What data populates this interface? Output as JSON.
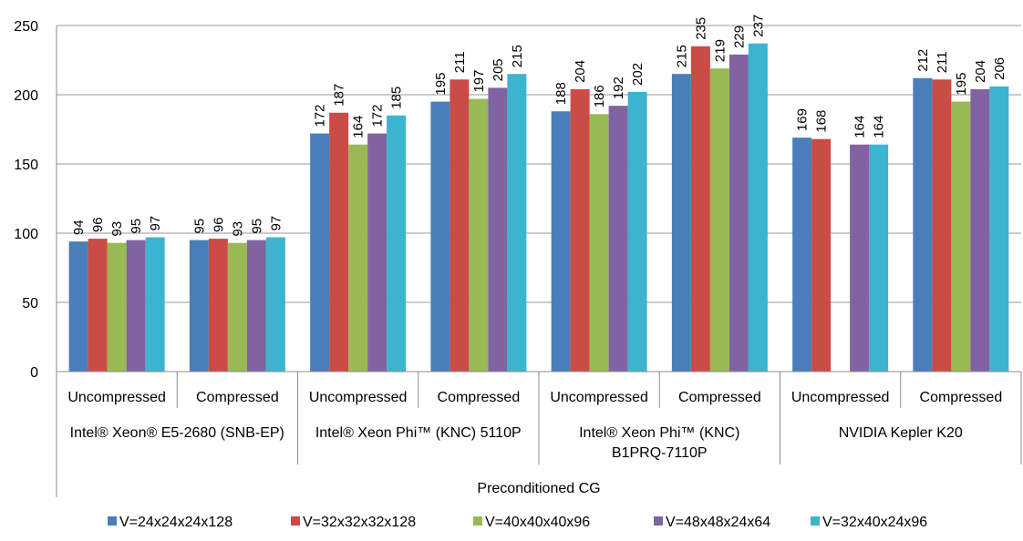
{
  "chart_data": {
    "type": "bar",
    "title": "",
    "xlabel": "",
    "ylabel": "",
    "ylim": [
      0,
      250
    ],
    "yticks": [
      0,
      50,
      100,
      150,
      200,
      250
    ],
    "grid": true,
    "legend_position": "bottom",
    "axis_group_label": "Preconditioned CG",
    "groups": [
      {
        "label": "Intel® Xeon®  E5-2680 (SNB-EP)",
        "label_lines": [
          "Intel® Xeon®  E5-2680 (SNB-EP)"
        ]
      },
      {
        "label": "Intel® Xeon Phi™ (KNC) 5110P",
        "label_lines": [
          "Intel® Xeon Phi™ (KNC) 5110P"
        ]
      },
      {
        "label": "Intel® Xeon Phi™ (KNC) B1PRQ-7110P",
        "label_lines": [
          "Intel® Xeon Phi™ (KNC)",
          "B1PRQ-7110P"
        ]
      },
      {
        "label": "NVIDIA Kepler K20",
        "label_lines": [
          "NVIDIA Kepler K20"
        ]
      }
    ],
    "categories": [
      "Uncompressed",
      "Compressed",
      "Uncompressed",
      "Compressed",
      "Uncompressed",
      "Compressed",
      "Uncompressed",
      "Compressed"
    ],
    "series": [
      {
        "name": "V=24x24x24x128",
        "color": "#4a7ebb",
        "values": [
          94,
          95,
          172,
          195,
          188,
          215,
          169,
          212
        ]
      },
      {
        "name": "V=32x32x32x128",
        "color": "#cb4b46",
        "values": [
          96,
          96,
          187,
          211,
          204,
          235,
          168,
          211
        ]
      },
      {
        "name": "V=40x40x40x96",
        "color": "#98b954",
        "values": [
          93,
          93,
          164,
          197,
          186,
          219,
          null,
          195
        ]
      },
      {
        "name": "V=48x48x24x64",
        "color": "#8064a2",
        "values": [
          95,
          95,
          172,
          205,
          192,
          229,
          164,
          204
        ]
      },
      {
        "name": "V=32x40x24x96",
        "color": "#3cb4cf",
        "values": [
          97,
          97,
          185,
          215,
          202,
          237,
          164,
          206
        ]
      }
    ]
  }
}
